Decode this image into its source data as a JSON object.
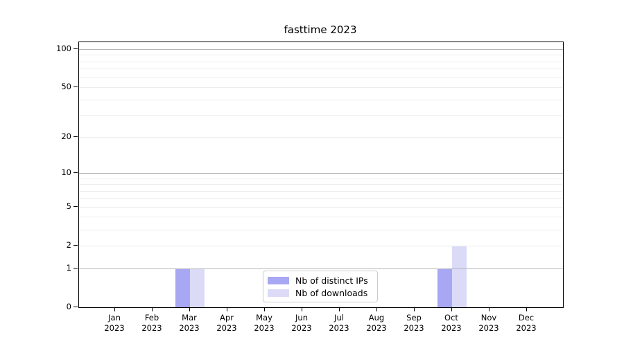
{
  "title": "fasttime 2023",
  "colors": {
    "distinct_ips": "#a7a7f3",
    "downloads": "#dbdbf8",
    "grid_major": "#b5b5b5",
    "grid_minor": "#ededed",
    "spine": "#000000",
    "legend_border": "#cccccc"
  },
  "legend": {
    "items": [
      {
        "label": "Nb of distinct IPs",
        "color": "#a7a7f3"
      },
      {
        "label": "Nb of downloads",
        "color": "#dbdbf8"
      }
    ]
  },
  "chart_data": {
    "type": "bar",
    "title": "fasttime 2023",
    "categories": [
      "Jan 2023",
      "Feb 2023",
      "Mar 2023",
      "Apr 2023",
      "May 2023",
      "Jun 2023",
      "Jul 2023",
      "Aug 2023",
      "Sep 2023",
      "Oct 2023",
      "Nov 2023",
      "Dec 2023"
    ],
    "series": [
      {
        "name": "Nb of distinct IPs",
        "color": "#a7a7f3",
        "values": [
          0,
          0,
          1,
          0,
          0,
          0,
          0,
          0,
          0,
          1,
          0,
          0
        ]
      },
      {
        "name": "Nb of downloads",
        "color": "#dbdbf8",
        "values": [
          0,
          0,
          1,
          0,
          0,
          0,
          0,
          0,
          0,
          2,
          0,
          0
        ]
      }
    ],
    "xlabel": "",
    "ylabel": "",
    "yscale": "log1p",
    "ylim": [
      0,
      114
    ],
    "y_ticks_labeled": [
      0,
      1,
      2,
      5,
      10,
      20,
      50,
      100
    ],
    "y_gridlines_major": [
      1,
      10,
      100
    ],
    "y_gridlines_minor": [
      2,
      3,
      4,
      5,
      6,
      7,
      8,
      9,
      20,
      30,
      40,
      50,
      60,
      70,
      80,
      90
    ],
    "grid": true,
    "legend_position": "lower center"
  }
}
